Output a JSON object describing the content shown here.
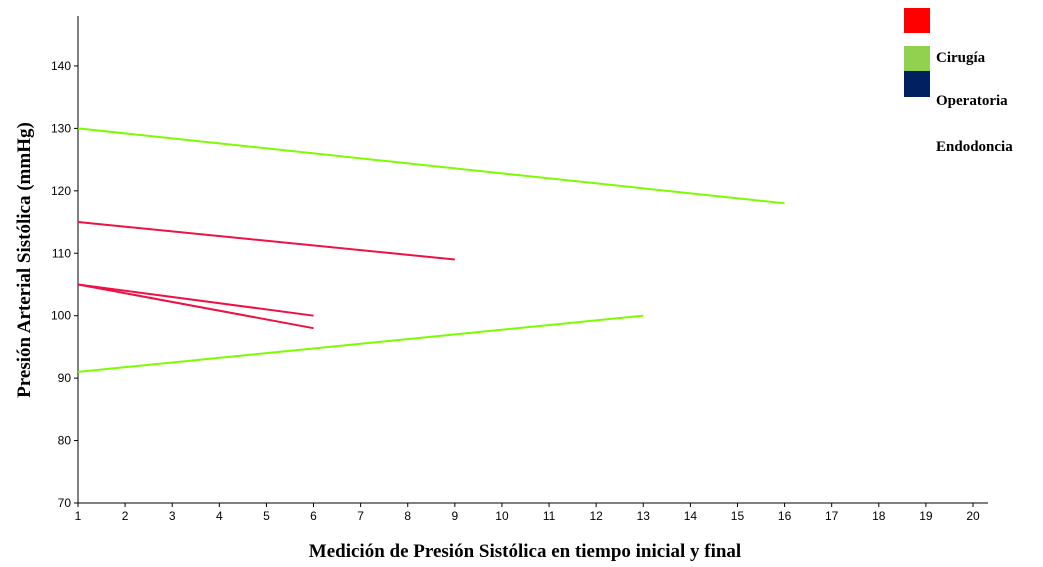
{
  "chart_data": {
    "type": "line",
    "xlabel": "Medición de Presión Sistólica en tiempo inicial y final",
    "ylabel": "Presión Arterial Sistólica (mmHg)",
    "xlim": [
      1,
      20
    ],
    "ylim": [
      70,
      148
    ],
    "x_ticks": [
      1,
      2,
      3,
      4,
      5,
      6,
      7,
      8,
      9,
      10,
      11,
      12,
      13,
      14,
      15,
      16,
      17,
      18,
      19,
      20
    ],
    "y_ticks": [
      70,
      80,
      90,
      100,
      110,
      120,
      130,
      140
    ],
    "grid": false,
    "legend_position": "top-right",
    "legend": [
      {
        "label": "",
        "color": "#ff0000"
      },
      {
        "label": "Cirugía",
        "color": "#92d050"
      },
      {
        "label": "Operatoria",
        "color": "#002060"
      },
      {
        "label": "Endodoncia",
        "color": ""
      }
    ],
    "series": [
      {
        "color": "#7cfc00",
        "points": [
          [
            1,
            130
          ],
          [
            16,
            118
          ]
        ]
      },
      {
        "color": "#ee1144",
        "points": [
          [
            1,
            115
          ],
          [
            9,
            109
          ]
        ]
      },
      {
        "color": "#ee1144",
        "points": [
          [
            1,
            105
          ],
          [
            6,
            100
          ]
        ]
      },
      {
        "color": "#ee1144",
        "points": [
          [
            1,
            105
          ],
          [
            6,
            98
          ]
        ]
      },
      {
        "color": "#7cfc00",
        "points": [
          [
            1,
            91
          ],
          [
            13,
            100
          ]
        ]
      }
    ]
  }
}
